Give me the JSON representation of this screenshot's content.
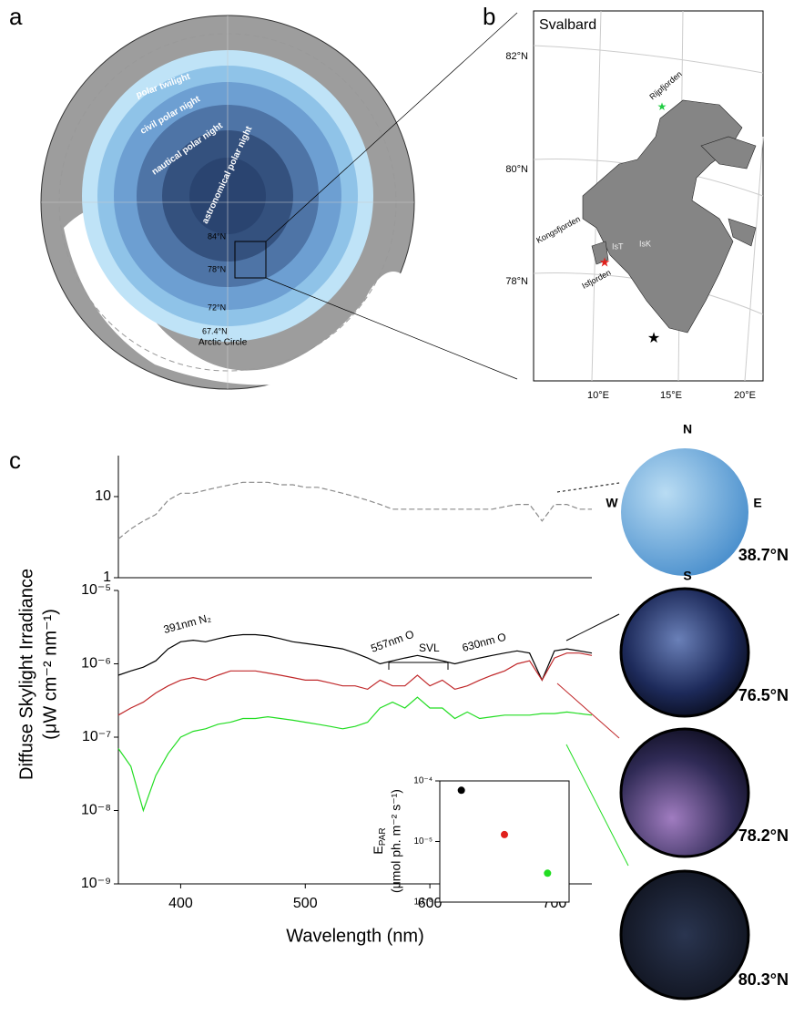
{
  "panels": {
    "a": {
      "label": "a",
      "zones": [
        "polar twilight",
        "civil polar night",
        "nautical polar night",
        "astronomical polar night"
      ],
      "latitudes": [
        "84°N",
        "78°N",
        "72°N",
        "67.4°N"
      ],
      "circle": "Arctic Circle"
    },
    "b": {
      "label": "b",
      "title": "Svalbard",
      "latitudes": [
        "82°N",
        "80°N",
        "78°N"
      ],
      "longitudes": [
        "10°E",
        "15°E",
        "20°E"
      ],
      "places": [
        "Rijpfjorden",
        "Kongsfjorden",
        "Isfjorden",
        "IsT",
        "IsK"
      ]
    },
    "c": {
      "label": "c"
    }
  },
  "compass": [
    "N",
    "S",
    "W",
    "E"
  ],
  "sky_images": [
    "38.7°N",
    "76.5°N",
    "78.2°N",
    "80.3°N"
  ],
  "chart_data": [
    {
      "type": "line",
      "yscale": "log",
      "line_style": "dashed",
      "x": [
        350,
        360,
        370,
        380,
        390,
        400,
        410,
        420,
        430,
        440,
        450,
        460,
        470,
        480,
        490,
        500,
        510,
        520,
        530,
        540,
        550,
        560,
        570,
        580,
        590,
        600,
        610,
        620,
        630,
        640,
        650,
        660,
        670,
        680,
        690,
        700,
        710,
        720,
        730
      ],
      "xlim": [
        350,
        730
      ],
      "ylim": [
        1,
        32
      ],
      "yticks": [
        1,
        10
      ],
      "series": [
        {
          "color": "#8a8a8a",
          "values": [
            3,
            4,
            5,
            6,
            9,
            11,
            11,
            12,
            13,
            14,
            15,
            15,
            15,
            14,
            14,
            13,
            13,
            12,
            11,
            10,
            9,
            8,
            7,
            7,
            7,
            7,
            7,
            7,
            7,
            7,
            7,
            7.5,
            8,
            8,
            5,
            8,
            8,
            7,
            7
          ]
        }
      ]
    },
    {
      "type": "line",
      "yscale": "log",
      "x": [
        350,
        360,
        370,
        380,
        390,
        400,
        410,
        420,
        430,
        440,
        450,
        460,
        470,
        480,
        490,
        500,
        510,
        520,
        530,
        540,
        550,
        560,
        570,
        580,
        590,
        600,
        610,
        620,
        630,
        640,
        650,
        660,
        670,
        680,
        690,
        700,
        710,
        720,
        730
      ],
      "xlim": [
        350,
        730
      ],
      "xticks": [
        400,
        500,
        600,
        700
      ],
      "xlabel": "Wavelength (nm)",
      "ylim": [
        1e-09,
        1e-05
      ],
      "yticks": [
        {
          "value": 1e-09,
          "label": "10⁻⁹"
        },
        {
          "value": 1e-08,
          "label": "10⁻⁸"
        },
        {
          "value": 1e-07,
          "label": "10⁻⁷"
        },
        {
          "value": 1e-06,
          "label": "10⁻⁶"
        },
        {
          "value": 1e-05,
          "label": "10⁻⁵"
        }
      ],
      "ylabel": [
        "Diffuse Skylight Irradiance",
        "(μW cm⁻² nm⁻¹)"
      ],
      "annotations": [
        "391nm N₂",
        "557nm O",
        "SVL",
        "630nm O"
      ],
      "series": [
        {
          "color": "#000000",
          "values": [
            7e-07,
            8e-07,
            9e-07,
            1.1e-06,
            1.6e-06,
            2e-06,
            2.1e-06,
            2e-06,
            2.2e-06,
            2.4e-06,
            2.5e-06,
            2.5e-06,
            2.4e-06,
            2.2e-06,
            2e-06,
            1.9e-06,
            1.8e-06,
            1.7e-06,
            1.6e-06,
            1.4e-06,
            1.2e-06,
            1e-06,
            1.1e-06,
            1.2e-06,
            1.3e-06,
            1.2e-06,
            1.1e-06,
            1e-06,
            1.1e-06,
            1.2e-06,
            1.3e-06,
            1.4e-06,
            1.5e-06,
            1.4e-06,
            6e-07,
            1.5e-06,
            1.6e-06,
            1.5e-06,
            1.4e-06
          ]
        },
        {
          "color": "#c0282a",
          "values": [
            2e-07,
            2.5e-07,
            3e-07,
            4e-07,
            5e-07,
            6e-07,
            6.5e-07,
            6e-07,
            7e-07,
            8e-07,
            8e-07,
            8e-07,
            7.5e-07,
            7e-07,
            6.5e-07,
            6e-07,
            6e-07,
            5.5e-07,
            5e-07,
            5e-07,
            4.5e-07,
            6e-07,
            5e-07,
            5e-07,
            7e-07,
            5e-07,
            6e-07,
            4.5e-07,
            5e-07,
            6e-07,
            7e-07,
            8e-07,
            1e-06,
            1.1e-06,
            6e-07,
            1.2e-06,
            1.4e-06,
            1.4e-06,
            1.3e-06
          ]
        },
        {
          "color": "#22dd22",
          "values": [
            7e-08,
            4e-08,
            1e-08,
            3e-08,
            6e-08,
            1e-07,
            1.2e-07,
            1.3e-07,
            1.5e-07,
            1.6e-07,
            1.8e-07,
            1.8e-07,
            1.9e-07,
            1.8e-07,
            1.7e-07,
            1.6e-07,
            1.5e-07,
            1.4e-07,
            1.3e-07,
            1.4e-07,
            1.6e-07,
            2.5e-07,
            3e-07,
            2.5e-07,
            3.5e-07,
            2.5e-07,
            2.5e-07,
            1.8e-07,
            2.2e-07,
            1.8e-07,
            1.9e-07,
            2e-07,
            2e-07,
            2e-07,
            2.1e-07,
            2.1e-07,
            2.2e-07,
            2.1e-07,
            2e-07
          ]
        }
      ]
    },
    {
      "type": "scatter",
      "yscale": "log",
      "categories": [
        null,
        null,
        null
      ],
      "values": [
        7e-05,
        1.3e-05,
        3e-06
      ],
      "colors": [
        "#000000",
        "#e0201c",
        "#22dd22"
      ],
      "ylim": [
        1e-06,
        0.0001
      ],
      "yticks": [
        {
          "value": 1e-06,
          "label": "10⁻⁶"
        },
        {
          "value": 1e-05,
          "label": "10⁻⁵"
        },
        {
          "value": 0.0001,
          "label": "10⁻⁴"
        }
      ],
      "ylabel": [
        "E",
        "PAR",
        "(μmol ph. m⁻² s⁻¹)"
      ]
    }
  ]
}
